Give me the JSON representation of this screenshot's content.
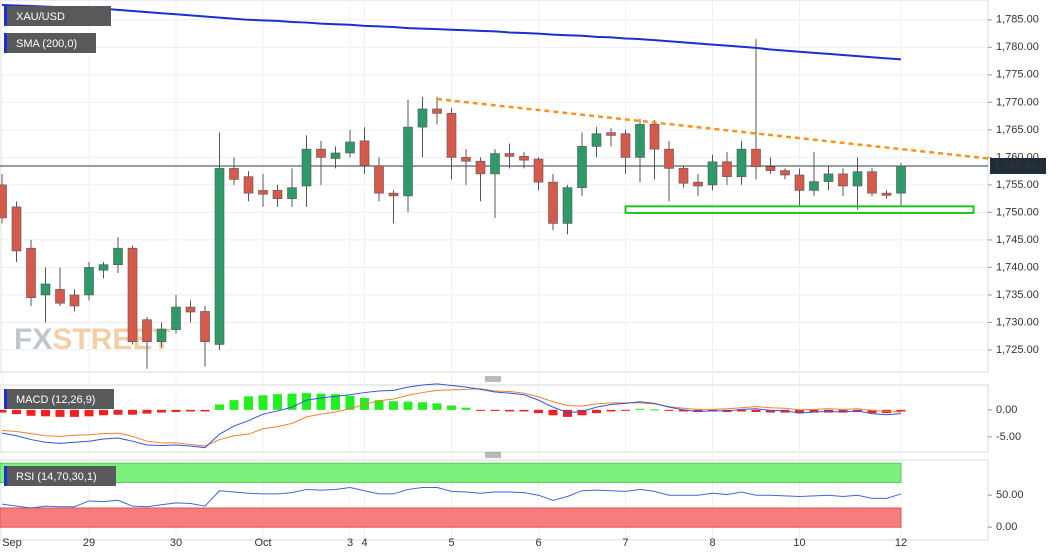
{
  "chart_data": [
    {
      "type": "candlestick",
      "categories": [
        "Sep",
        null,
        null,
        null,
        null,
        null,
        "29",
        null,
        null,
        null,
        null,
        null,
        "30",
        null,
        null,
        null,
        null,
        null,
        "Oct",
        null,
        null,
        null,
        null,
        null,
        "3",
        "4",
        null,
        null,
        null,
        null,
        null,
        "5",
        null,
        null,
        null,
        null,
        null,
        "6",
        null,
        null,
        null,
        null,
        null,
        "7",
        null,
        null,
        null,
        null,
        null,
        "8",
        null,
        null,
        null,
        null,
        null,
        "10",
        null,
        null,
        null,
        null,
        null,
        null,
        "12"
      ],
      "series": [
        {
          "name": "XAU/USD",
          "up_color": "#2e9a6a",
          "down_color": "#d65a4c",
          "open": [
            1755,
            1751,
            1743.5,
            1735,
            1736,
            1735,
            1735,
            1739.5,
            1740.5,
            1743.5,
            1730.5,
            1726.5,
            1728.7,
            1732.8,
            1732,
            1726,
            1758,
            1756.5,
            1754,
            1754,
            1752.5,
            1754.8,
            1761.5,
            1759.8,
            1760.8,
            1763,
            1758.5,
            1753.5,
            1753,
            1765.5,
            1768.8,
            1768,
            1760,
            1759.3,
            1757,
            1760.7,
            1760.2,
            1759.7,
            1755.5,
            1748,
            1754.5,
            1762,
            1764.5,
            1764.3,
            1760,
            1766,
            1761.5,
            1758,
            1755.5,
            1755,
            1759.2,
            1756.5,
            1761.5,
            1758.3,
            1757.6,
            1756.8,
            1754,
            1755.6,
            1757,
            1754.8,
            1757.4,
            1753.5,
            1753.5
          ],
          "high": [
            1757,
            1752,
            1745,
            1740,
            1740,
            1736,
            1741,
            1741,
            1745.5,
            1744,
            1731,
            1730,
            1735,
            1734,
            1733,
            1764.5,
            1760,
            1757.5,
            1757,
            1755,
            1758,
            1764,
            1763,
            1762,
            1765,
            1765.5,
            1760,
            1754,
            1770.5,
            1771,
            1771,
            1769,
            1761.5,
            1760,
            1761.5,
            1762.5,
            1761,
            1760,
            1757,
            1755,
            1764.5,
            1765.5,
            1765.3,
            1765,
            1767,
            1766.8,
            1763,
            1758.5,
            1757,
            1760.5,
            1761,
            1763,
            1781.5,
            1760,
            1758,
            1758,
            1761,
            1758.5,
            1758,
            1760,
            1758,
            1754,
            1759
          ],
          "low": [
            1748,
            1741,
            1733,
            1730,
            1733,
            1732,
            1734,
            1738,
            1739,
            1726,
            1721.6,
            1725.5,
            1728,
            1730,
            1722,
            1725,
            1755,
            1752,
            1751,
            1751,
            1751,
            1751,
            1755,
            1758,
            1760,
            1757,
            1752,
            1748,
            1750,
            1760,
            1766,
            1756,
            1755,
            1752,
            1749,
            1758,
            1758,
            1754,
            1746.8,
            1746,
            1753,
            1760,
            1762,
            1757,
            1755.5,
            1756,
            1752,
            1754.5,
            1753,
            1754,
            1755,
            1755,
            1756,
            1757,
            1756,
            1751,
            1753,
            1754,
            1753,
            1750.5,
            1753,
            1752.5,
            1751
          ],
          "close": [
            1749,
            1743,
            1734.5,
            1737,
            1733.5,
            1733,
            1740,
            1740.5,
            1743.5,
            1726.5,
            1726.5,
            1728.8,
            1732.8,
            1731.9,
            1726.5,
            1758,
            1756,
            1753.5,
            1753.3,
            1752.5,
            1754.5,
            1761.5,
            1760,
            1760.8,
            1762.8,
            1758.5,
            1753.5,
            1753,
            1765.5,
            1768.8,
            1768,
            1760,
            1759.3,
            1757,
            1760.7,
            1760.2,
            1759.5,
            1755.5,
            1748,
            1754.5,
            1762,
            1764.3,
            1764,
            1760,
            1766,
            1761.5,
            1758,
            1755.3,
            1754.8,
            1759.2,
            1756.5,
            1761.5,
            1758.3,
            1757.6,
            1756.8,
            1754,
            1755.6,
            1757,
            1754.8,
            1757.4,
            1753.5,
            1753.1,
            1758.44
          ]
        },
        {
          "name": "SMA (200,0)",
          "color": "#1c2fd0",
          "values": [
            1787.7,
            1787.6,
            1787.5,
            1787.4,
            1787.3,
            1787.2,
            1787.1,
            1787.0,
            1786.8,
            1786.6,
            1786.4,
            1786.2,
            1786.0,
            1785.8,
            1785.6,
            1785.4,
            1785.2,
            1785.0,
            1784.9,
            1784.8,
            1784.6,
            1784.5,
            1784.3,
            1784.2,
            1784.1,
            1783.9,
            1783.8,
            1783.7,
            1783.5,
            1783.4,
            1783.3,
            1783.2,
            1783.1,
            1783.0,
            1782.9,
            1782.7,
            1782.6,
            1782.5,
            1782.3,
            1782.2,
            1782.1,
            1781.9,
            1781.8,
            1781.6,
            1781.5,
            1781.3,
            1781.1,
            1780.9,
            1780.7,
            1780.5,
            1780.3,
            1780.1,
            1779.9,
            1779.6,
            1779.4,
            1779.2,
            1779.0,
            1778.8,
            1778.6,
            1778.4,
            1778.2,
            1778.0,
            1777.8
          ]
        }
      ],
      "ylim": [
        1721,
        1788.6
      ],
      "yticks": [
        {
          "value": 1725,
          "label": "1,725.00"
        },
        {
          "value": 1730,
          "label": "1,730.00"
        },
        {
          "value": 1735,
          "label": "1,735.00"
        },
        {
          "value": 1740,
          "label": "1,740.00"
        },
        {
          "value": 1745,
          "label": "1,745.00"
        },
        {
          "value": 1750,
          "label": "1,750.00"
        },
        {
          "value": 1755,
          "label": "1,755.00"
        },
        {
          "value": 1760,
          "label": "1,760.00"
        },
        {
          "value": 1765,
          "label": "1,765.00"
        },
        {
          "value": 1770,
          "label": "1,770.00"
        },
        {
          "value": 1775,
          "label": "1,775.00"
        },
        {
          "value": 1780,
          "label": "1,780.00"
        },
        {
          "value": 1785,
          "label": "1,785.00"
        }
      ],
      "grid": true,
      "last_price": {
        "value": 1758.44,
        "label": "1,758.44"
      },
      "trendline": {
        "x": [
          30,
          68
        ],
        "y": [
          1770.6,
          1759.8
        ],
        "color": "#f7941d"
      },
      "support_box": {
        "x": [
          43,
          67
        ],
        "y": [
          1749.9,
          1751.1
        ],
        "color": "#22c422"
      },
      "watermark": [
        "FX",
        "STREET"
      ]
    },
    {
      "type": "macd",
      "label": "MACD (12,26,9)",
      "histogram": {
        "up_color": "#22ee22",
        "down_color": "#ee2222",
        "values": [
          -0.5,
          -0.8,
          -1.1,
          -1.2,
          -1.3,
          -1.3,
          -1.2,
          -1.0,
          -0.9,
          -0.9,
          -0.7,
          -0.5,
          -0.4,
          -0.3,
          -0.3,
          1,
          1.8,
          2.5,
          2.7,
          2.9,
          3,
          3.1,
          3,
          2.9,
          2.6,
          2.2,
          1.8,
          1.6,
          1.5,
          1.4,
          1.2,
          0.8,
          0.4,
          -0.1,
          -0.2,
          -0.3,
          -0.3,
          -0.6,
          -1,
          -1.3,
          -1,
          -0.6,
          -0.3,
          -0.1,
          0.2,
          0.1,
          -0.1,
          -0.3,
          -0.4,
          -0.3,
          -0.4,
          -0.3,
          -0.4,
          -0.5,
          -0.5,
          -0.6,
          -0.5,
          -0.5,
          -0.5,
          -0.4,
          -0.6,
          -0.6,
          -0.3
        ]
      },
      "macd": {
        "color": "#3355dd",
        "values": [
          -4.3,
          -4.8,
          -5.5,
          -6,
          -6.2,
          -6,
          -5.8,
          -5.4,
          -5.2,
          -5.8,
          -6.5,
          -6.6,
          -6.5,
          -6.7,
          -7,
          -4.5,
          -3,
          -2,
          -0.8,
          -0.2,
          0.5,
          1.8,
          2.2,
          2.5,
          2.8,
          3.2,
          3.5,
          3.6,
          4.2,
          4.6,
          4.8,
          4.5,
          4.2,
          3.8,
          3.3,
          3.1,
          2.8,
          1.8,
          0.5,
          -0.5,
          -0.3,
          0.5,
          1,
          1.2,
          1.5,
          1.2,
          0.5,
          0,
          -0.3,
          -0.2,
          -0.2,
          0.1,
          0.2,
          -0.1,
          -0.2,
          -0.6,
          -0.4,
          -0.3,
          -0.4,
          -0.2,
          -0.7,
          -0.9,
          -0.7
        ]
      },
      "signal": {
        "color": "#f08030",
        "values": [
          -3.8,
          -4.0,
          -4.4,
          -4.8,
          -4.9,
          -4.7,
          -4.6,
          -4.4,
          -4.3,
          -4.9,
          -5.8,
          -6.1,
          -6.1,
          -6.4,
          -6.7,
          -5.5,
          -4.8,
          -4.5,
          -3.5,
          -3.1,
          -2.5,
          -1.3,
          -0.8,
          -0.4,
          0.2,
          1.0,
          1.7,
          2.0,
          2.7,
          3.2,
          3.6,
          3.7,
          3.8,
          3.9,
          3.5,
          3.4,
          3.1,
          2.4,
          1.5,
          0.8,
          0.7,
          1.1,
          1.3,
          1.3,
          1.3,
          1.1,
          0.6,
          0.3,
          0.1,
          0.1,
          0.2,
          0.4,
          0.6,
          0.4,
          0.3,
          0,
          0.1,
          0.2,
          0.1,
          0.2,
          -0.1,
          -0.3,
          -0.4
        ]
      },
      "ylim": [
        -7.8,
        4.6
      ],
      "yticks": [
        {
          "value": 0,
          "label": "0.00"
        },
        {
          "value": -5,
          "label": "-5.00"
        }
      ]
    },
    {
      "type": "rsi",
      "label": "RSI (14,70,30,1)",
      "color": "#4466dd",
      "values": [
        36,
        33,
        30,
        33,
        32,
        32,
        41,
        40,
        42,
        33,
        32,
        35,
        38,
        37,
        33,
        57,
        55,
        53,
        52,
        52,
        54,
        59,
        58,
        59,
        62,
        57,
        52,
        52,
        59,
        62,
        62,
        56,
        55,
        53,
        55,
        55,
        54,
        50,
        42,
        48,
        57,
        58,
        57,
        56,
        59,
        56,
        50,
        50,
        50,
        53,
        51,
        55,
        50,
        50,
        49,
        48,
        49,
        50,
        48,
        50,
        45,
        45,
        52
      ],
      "ylim": [
        -20,
        105
      ],
      "yticks": [
        {
          "value": 50,
          "label": "50.00"
        },
        {
          "value": 0,
          "label": "0.00"
        }
      ],
      "overbought": {
        "value": 70,
        "top": 100,
        "color": "#7cf07c"
      },
      "oversold": {
        "value": 30,
        "bottom": 0,
        "color": "#f77c7c"
      }
    }
  ]
}
